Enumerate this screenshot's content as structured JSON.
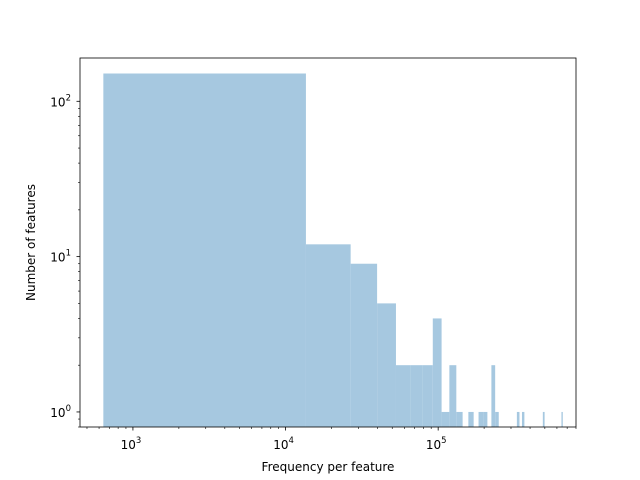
{
  "chart_data": {
    "type": "bar",
    "title": "",
    "xlabel": "Frequency per feature",
    "ylabel": "Number of features",
    "xscale": "log",
    "yscale": "log",
    "xlim": [
      450,
      800000
    ],
    "ylim": [
      0.8,
      190
    ],
    "grid": false,
    "x_ticks": [
      {
        "base": "10",
        "exp": "3",
        "value": 1000
      },
      {
        "base": "10",
        "exp": "4",
        "value": 10000
      },
      {
        "base": "10",
        "exp": "5",
        "value": 100000
      }
    ],
    "y_ticks": [
      {
        "base": "10",
        "exp": "0",
        "value": 1
      },
      {
        "base": "10",
        "exp": "1",
        "value": 10
      },
      {
        "base": "10",
        "exp": "2",
        "value": 100
      }
    ],
    "bars": [
      {
        "x0": 640,
        "x1": 13600,
        "count": 151
      },
      {
        "x0": 13600,
        "x1": 26700,
        "count": 12
      },
      {
        "x0": 26700,
        "x1": 39800,
        "count": 9
      },
      {
        "x0": 39800,
        "x1": 52900,
        "count": 5
      },
      {
        "x0": 52900,
        "x1": 66000,
        "count": 2
      },
      {
        "x0": 66000,
        "x1": 79100,
        "count": 2
      },
      {
        "x0": 79100,
        "x1": 92200,
        "count": 2
      },
      {
        "x0": 92200,
        "x1": 105300,
        "count": 4
      },
      {
        "x0": 105300,
        "x1": 118400,
        "count": 1
      },
      {
        "x0": 118400,
        "x1": 131500,
        "count": 2
      },
      {
        "x0": 131500,
        "x1": 144600,
        "count": 1
      },
      {
        "x0": 157700,
        "x1": 170800,
        "count": 1
      },
      {
        "x0": 183900,
        "x1": 197000,
        "count": 1
      },
      {
        "x0": 197000,
        "x1": 210100,
        "count": 1
      },
      {
        "x0": 223200,
        "x1": 236300,
        "count": 2
      },
      {
        "x0": 236300,
        "x1": 249400,
        "count": 1
      },
      {
        "x0": 327900,
        "x1": 341000,
        "count": 1
      },
      {
        "x0": 354100,
        "x1": 367200,
        "count": 1
      },
      {
        "x0": 485100,
        "x1": 498200,
        "count": 1
      },
      {
        "x0": 642300,
        "x1": 655400,
        "count": 1
      }
    ]
  }
}
